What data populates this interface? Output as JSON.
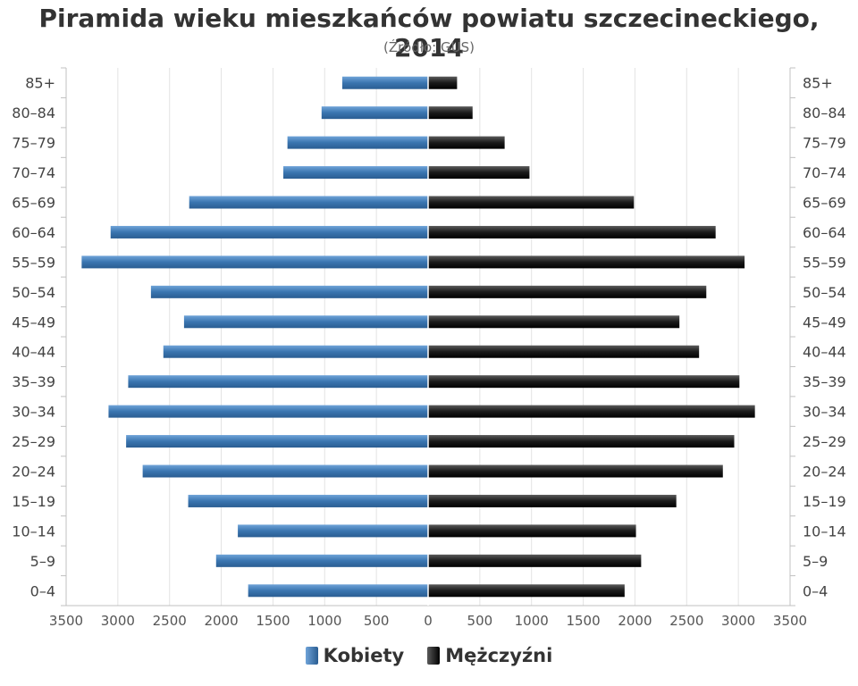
{
  "chart_data": {
    "type": "bar",
    "orientation": "horizontal-population-pyramid",
    "title": "Piramida wieku mieszkańców powiatu szczecineckiego, 2014",
    "subtitle": "(Źródło: GUS)",
    "categories": [
      "85+",
      "80–84",
      "75–79",
      "70–74",
      "65–69",
      "60–64",
      "55–59",
      "50–54",
      "45–49",
      "40–44",
      "35–39",
      "30–34",
      "25–29",
      "20–24",
      "15–19",
      "10–14",
      "5–9",
      "0–4"
    ],
    "series": [
      {
        "name": "Kobiety",
        "color": "#3a75b0",
        "values": [
          830,
          1030,
          1360,
          1400,
          2310,
          3070,
          3350,
          2680,
          2360,
          2560,
          2900,
          3090,
          2920,
          2760,
          2320,
          1840,
          2050,
          1740
        ]
      },
      {
        "name": "Mężczyźni",
        "color": "#1a1a1a",
        "values": [
          280,
          430,
          740,
          980,
          1990,
          2780,
          3060,
          2690,
          2430,
          2620,
          3010,
          3160,
          2960,
          2850,
          2400,
          2010,
          2060,
          1900
        ]
      }
    ],
    "xlim": [
      -3500,
      3500
    ],
    "xticks": [
      "3500",
      "3000",
      "2500",
      "2000",
      "1500",
      "1000",
      "500",
      "0",
      "500",
      "1000",
      "1500",
      "2000",
      "2500",
      "3000",
      "3500"
    ],
    "grid": true,
    "legend": "bottom-center"
  }
}
